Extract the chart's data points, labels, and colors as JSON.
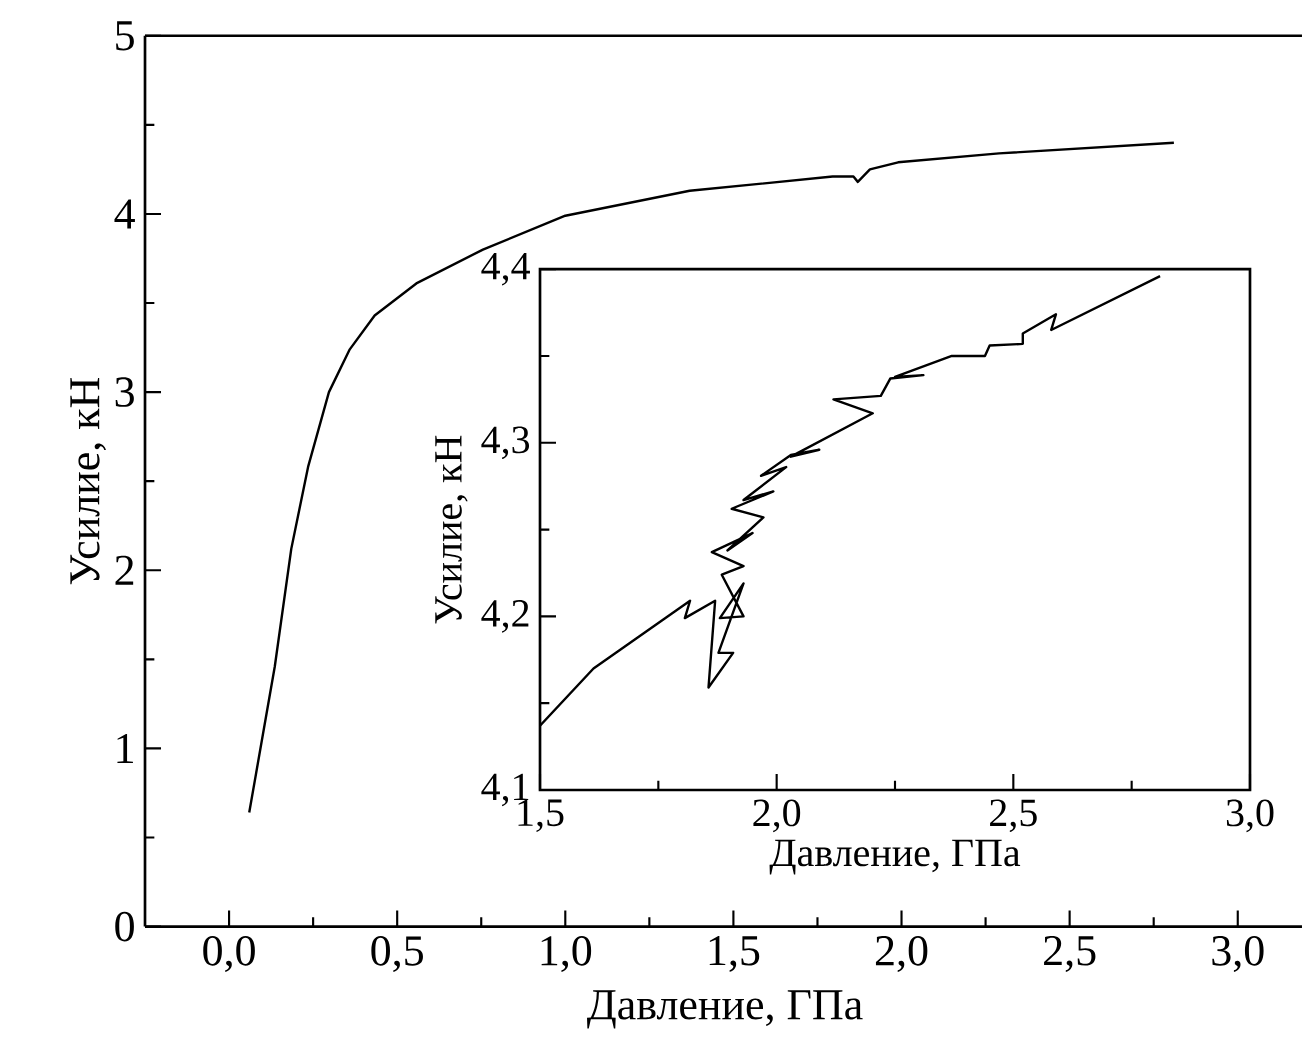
{
  "chart_data": [
    {
      "type": "line",
      "xlabel": "Давление, ГПа",
      "ylabel": "Усилие, кН",
      "xlim": [
        -0.25,
        3.2
      ],
      "ylim": [
        0,
        5
      ],
      "xticks": [
        {
          "value": 0,
          "label": "0,0"
        },
        {
          "value": 0.5,
          "label": "0,5"
        },
        {
          "value": 1,
          "label": "1,0"
        },
        {
          "value": 1.5,
          "label": "1,5"
        },
        {
          "value": 2,
          "label": "2,0"
        },
        {
          "value": 2.5,
          "label": "2,5"
        },
        {
          "value": 3,
          "label": "3,0"
        }
      ],
      "yticks": [
        0,
        1,
        2,
        3,
        4,
        5
      ],
      "marker": "none",
      "line_style": "solid",
      "series": [
        {
          "color": "#000000",
          "x": [
            0.06,
            0.136,
            0.185,
            0.235,
            0.297,
            0.359,
            0.433,
            0.557,
            0.755,
            1.0,
            1.37,
            1.795,
            1.857,
            1.87,
            1.906,
            1.99,
            2.29,
            2.81
          ],
          "values": [
            0.64,
            1.46,
            2.12,
            2.58,
            3.0,
            3.24,
            3.43,
            3.61,
            3.8,
            3.99,
            4.13,
            4.21,
            4.21,
            4.18,
            4.25,
            4.29,
            4.34,
            4.4
          ]
        }
      ]
    },
    {
      "type": "line",
      "xlabel": "Давление, ГПа",
      "ylabel": "Усилие, кН",
      "xlim": [
        1.5,
        3.0
      ],
      "ylim": [
        4.1,
        4.4
      ],
      "xticks": [
        {
          "value": 1.5,
          "label": "1,5"
        },
        {
          "value": 2,
          "label": "2,0"
        },
        {
          "value": 2.5,
          "label": "2,5"
        },
        {
          "value": 3,
          "label": "3,0"
        }
      ],
      "yticks": [
        {
          "value": 4.1,
          "label": "4,1"
        },
        {
          "value": 4.2,
          "label": "4,2"
        },
        {
          "value": 4.3,
          "label": "4,3"
        },
        {
          "value": 4.4,
          "label": "4,4"
        }
      ],
      "marker": "none",
      "line_style": "solid",
      "series": [
        {
          "color": "#000000",
          "x": [
            1.5,
            1.613,
            1.817,
            1.806,
            1.87,
            1.856,
            1.908,
            1.877,
            1.93,
            1.88,
            1.93,
            1.884,
            1.93,
            1.863,
            1.949,
            1.896,
            1.972,
            1.905,
            1.993,
            1.93,
            2.02,
            1.967,
            2.03,
            2.09,
            2.03,
            2.203,
            2.12,
            2.22,
            2.24,
            2.31,
            2.25,
            2.37,
            2.44,
            2.45,
            2.52,
            2.52,
            2.59,
            2.58,
            2.81
          ],
          "values": [
            4.137,
            4.17,
            4.209,
            4.199,
            4.209,
            4.159,
            4.179,
            4.179,
            4.219,
            4.199,
            4.2,
            4.224,
            4.229,
            4.237,
            4.248,
            4.238,
            4.257,
            4.262,
            4.272,
            4.267,
            4.286,
            4.281,
            4.293,
            4.296,
            4.292,
            4.317,
            4.325,
            4.327,
            4.337,
            4.339,
            4.338,
            4.35,
            4.35,
            4.356,
            4.357,
            4.363,
            4.374,
            4.365,
            4.396
          ]
        }
      ]
    }
  ]
}
